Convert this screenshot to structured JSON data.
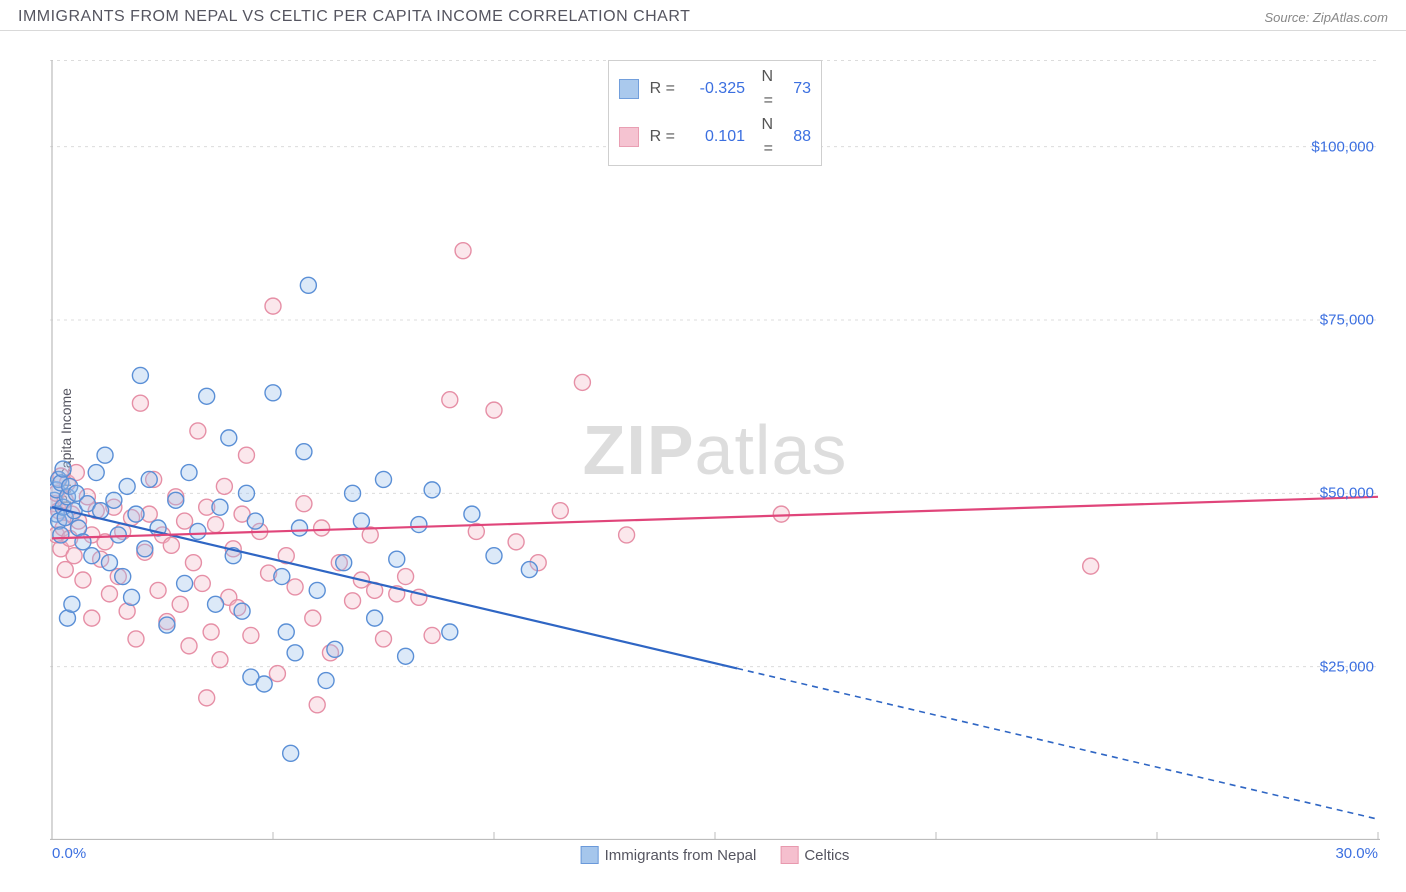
{
  "header": {
    "title": "IMMIGRANTS FROM NEPAL VS CELTIC PER CAPITA INCOME CORRELATION CHART",
    "source_prefix": "Source: ",
    "source_name": "ZipAtlas.com"
  },
  "ylabel": "Per Capita Income",
  "watermark": {
    "bold": "ZIP",
    "rest": "atlas"
  },
  "chart": {
    "type": "scatter",
    "xlim": [
      0,
      30
    ],
    "ylim": [
      0,
      112500
    ],
    "x_ticks": [
      0,
      30
    ],
    "x_tick_labels": [
      "0.0%",
      "30.0%"
    ],
    "y_ticks": [
      25000,
      50000,
      75000,
      100000
    ],
    "y_tick_labels": [
      "$25,000",
      "$50,000",
      "$75,000",
      "$100,000"
    ],
    "grid_color": "#dcdcdc",
    "axis_color": "#bcbcbc",
    "background": "#ffffff",
    "marker_radius": 8,
    "marker_fill_opacity": 0.35,
    "marker_stroke_width": 1.4,
    "series": [
      {
        "name": "Immigrants from Nepal",
        "color_stroke": "#5a8fd6",
        "color_fill": "#9cc0ea",
        "R": "-0.325",
        "N": "73",
        "trend": {
          "y_at_x0": 48000,
          "y_at_x30": 3000,
          "solid_until_x": 15.5,
          "color": "#2f66c4"
        },
        "points": [
          [
            0.05,
            49000
          ],
          [
            0.1,
            47000
          ],
          [
            0.1,
            50500
          ],
          [
            0.15,
            52000
          ],
          [
            0.15,
            46000
          ],
          [
            0.2,
            51500
          ],
          [
            0.2,
            44000
          ],
          [
            0.25,
            48000
          ],
          [
            0.25,
            53500
          ],
          [
            0.3,
            46500
          ],
          [
            0.35,
            49500
          ],
          [
            0.35,
            32000
          ],
          [
            0.4,
            51000
          ],
          [
            0.45,
            34000
          ],
          [
            0.5,
            47500
          ],
          [
            0.55,
            50000
          ],
          [
            0.6,
            45000
          ],
          [
            0.7,
            43000
          ],
          [
            0.8,
            48500
          ],
          [
            0.9,
            41000
          ],
          [
            1.0,
            53000
          ],
          [
            1.1,
            47500
          ],
          [
            1.2,
            55500
          ],
          [
            1.3,
            40000
          ],
          [
            1.4,
            49000
          ],
          [
            1.5,
            44000
          ],
          [
            1.6,
            38000
          ],
          [
            1.7,
            51000
          ],
          [
            1.8,
            35000
          ],
          [
            1.9,
            47000
          ],
          [
            2.0,
            67000
          ],
          [
            2.1,
            42000
          ],
          [
            2.2,
            52000
          ],
          [
            2.4,
            45000
          ],
          [
            2.6,
            31000
          ],
          [
            2.8,
            49000
          ],
          [
            3.0,
            37000
          ],
          [
            3.1,
            53000
          ],
          [
            3.3,
            44500
          ],
          [
            3.5,
            64000
          ],
          [
            3.7,
            34000
          ],
          [
            3.8,
            48000
          ],
          [
            4.0,
            58000
          ],
          [
            4.1,
            41000
          ],
          [
            4.3,
            33000
          ],
          [
            4.4,
            50000
          ],
          [
            4.5,
            23500
          ],
          [
            4.6,
            46000
          ],
          [
            4.8,
            22500
          ],
          [
            5.0,
            64500
          ],
          [
            5.2,
            38000
          ],
          [
            5.3,
            30000
          ],
          [
            5.5,
            27000
          ],
          [
            5.6,
            45000
          ],
          [
            5.8,
            80000
          ],
          [
            6.0,
            36000
          ],
          [
            6.2,
            23000
          ],
          [
            6.4,
            27500
          ],
          [
            6.6,
            40000
          ],
          [
            6.8,
            50000
          ],
          [
            7.0,
            46000
          ],
          [
            7.3,
            32000
          ],
          [
            7.5,
            52000
          ],
          [
            7.8,
            40500
          ],
          [
            8.0,
            26500
          ],
          [
            8.3,
            45500
          ],
          [
            8.6,
            50500
          ],
          [
            9.0,
            30000
          ],
          [
            9.5,
            47000
          ],
          [
            10.0,
            41000
          ],
          [
            10.8,
            39000
          ],
          [
            5.4,
            12500
          ],
          [
            5.7,
            56000
          ]
        ]
      },
      {
        "name": "Celtics",
        "color_stroke": "#e68fa6",
        "color_fill": "#f4b9c9",
        "R": "0.101",
        "N": "88",
        "trend": {
          "y_at_x0": 43500,
          "y_at_x30": 49500,
          "solid_until_x": 30,
          "color": "#e0457a"
        },
        "points": [
          [
            0.05,
            48500
          ],
          [
            0.1,
            44000
          ],
          [
            0.1,
            50000
          ],
          [
            0.15,
            47500
          ],
          [
            0.2,
            42000
          ],
          [
            0.2,
            52500
          ],
          [
            0.25,
            45000
          ],
          [
            0.3,
            49000
          ],
          [
            0.3,
            39000
          ],
          [
            0.35,
            51500
          ],
          [
            0.4,
            43500
          ],
          [
            0.45,
            47000
          ],
          [
            0.5,
            41000
          ],
          [
            0.55,
            53000
          ],
          [
            0.6,
            46000
          ],
          [
            0.7,
            37500
          ],
          [
            0.8,
            49500
          ],
          [
            0.9,
            44000
          ],
          [
            0.9,
            32000
          ],
          [
            1.0,
            47500
          ],
          [
            1.1,
            40500
          ],
          [
            1.2,
            43000
          ],
          [
            1.3,
            35500
          ],
          [
            1.4,
            48000
          ],
          [
            1.5,
            38000
          ],
          [
            1.6,
            44500
          ],
          [
            1.7,
            33000
          ],
          [
            1.8,
            46500
          ],
          [
            1.9,
            29000
          ],
          [
            2.0,
            63000
          ],
          [
            2.1,
            41500
          ],
          [
            2.2,
            47000
          ],
          [
            2.3,
            52000
          ],
          [
            2.4,
            36000
          ],
          [
            2.5,
            44000
          ],
          [
            2.6,
            31500
          ],
          [
            2.7,
            42500
          ],
          [
            2.8,
            49500
          ],
          [
            2.9,
            34000
          ],
          [
            3.0,
            46000
          ],
          [
            3.1,
            28000
          ],
          [
            3.2,
            40000
          ],
          [
            3.3,
            59000
          ],
          [
            3.4,
            37000
          ],
          [
            3.5,
            48000
          ],
          [
            3.6,
            30000
          ],
          [
            3.7,
            45500
          ],
          [
            3.8,
            26000
          ],
          [
            3.9,
            51000
          ],
          [
            4.0,
            35000
          ],
          [
            4.1,
            42000
          ],
          [
            4.2,
            33500
          ],
          [
            4.3,
            47000
          ],
          [
            4.4,
            55500
          ],
          [
            4.5,
            29500
          ],
          [
            4.7,
            44500
          ],
          [
            4.9,
            38500
          ],
          [
            5.0,
            77000
          ],
          [
            5.1,
            24000
          ],
          [
            5.3,
            41000
          ],
          [
            5.5,
            36500
          ],
          [
            5.7,
            48500
          ],
          [
            5.9,
            32000
          ],
          [
            6.0,
            19500
          ],
          [
            6.1,
            45000
          ],
          [
            6.3,
            27000
          ],
          [
            6.5,
            40000
          ],
          [
            6.8,
            34500
          ],
          [
            7.0,
            37500
          ],
          [
            7.2,
            44000
          ],
          [
            7.3,
            36000
          ],
          [
            7.5,
            29000
          ],
          [
            7.8,
            35500
          ],
          [
            8.0,
            38000
          ],
          [
            8.3,
            35000
          ],
          [
            8.6,
            29500
          ],
          [
            9.0,
            63500
          ],
          [
            9.3,
            85000
          ],
          [
            9.6,
            44500
          ],
          [
            10.0,
            62000
          ],
          [
            10.5,
            43000
          ],
          [
            11.0,
            40000
          ],
          [
            11.5,
            47500
          ],
          [
            12.0,
            66000
          ],
          [
            13.0,
            44000
          ],
          [
            16.5,
            47000
          ],
          [
            23.5,
            39500
          ],
          [
            3.5,
            20500
          ]
        ]
      }
    ]
  },
  "legend_bottom": [
    {
      "label": "Immigrants from Nepal",
      "stroke": "#5a8fd6",
      "fill": "#9cc0ea"
    },
    {
      "label": "Celtics",
      "stroke": "#e68fa6",
      "fill": "#f4b9c9"
    }
  ]
}
